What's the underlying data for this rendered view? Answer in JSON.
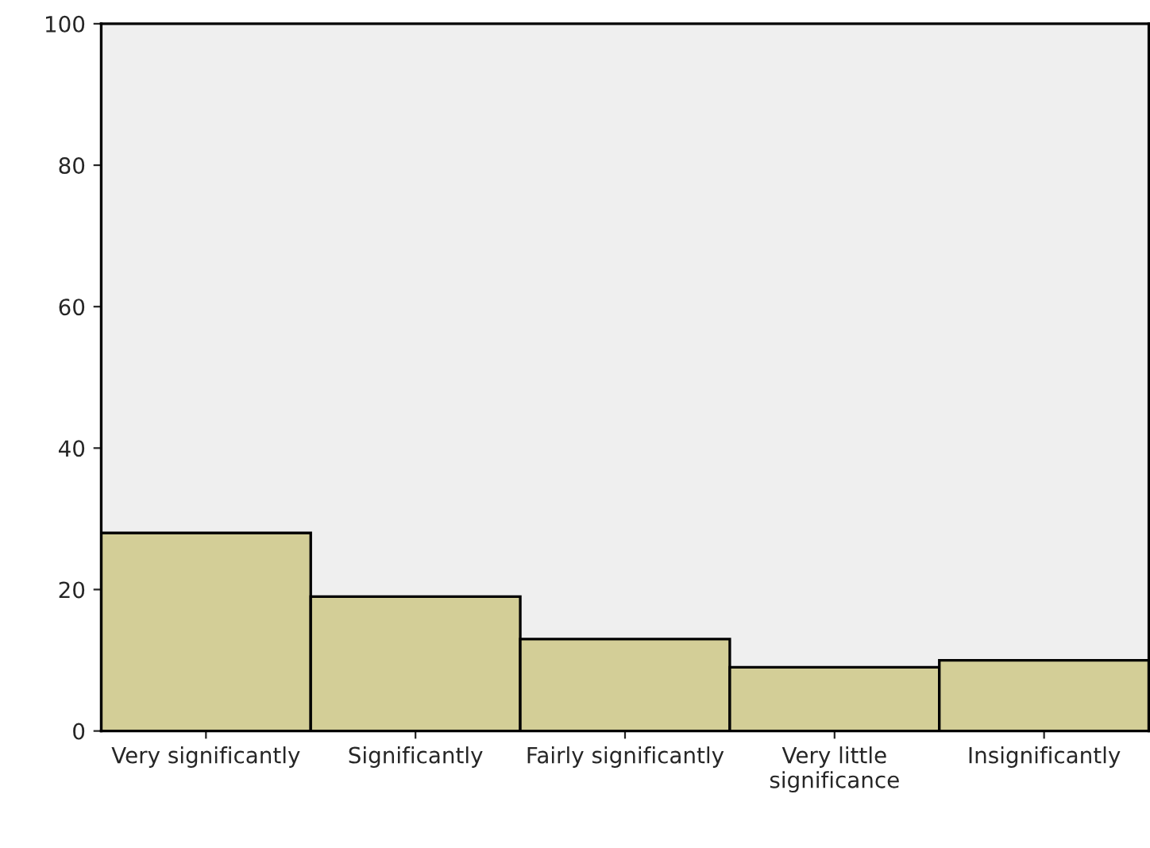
{
  "chart_data": {
    "type": "bar",
    "categories": [
      "Very significantly",
      "Significantly",
      "Fairly significantly",
      "Very little\nsignificance",
      "Insignificantly"
    ],
    "values": [
      28,
      19,
      13,
      9,
      10
    ],
    "color": "#d3ce97",
    "ylim": [
      0,
      100
    ],
    "yticks": [
      0,
      20,
      40,
      60,
      80,
      100
    ],
    "grid": false
  }
}
